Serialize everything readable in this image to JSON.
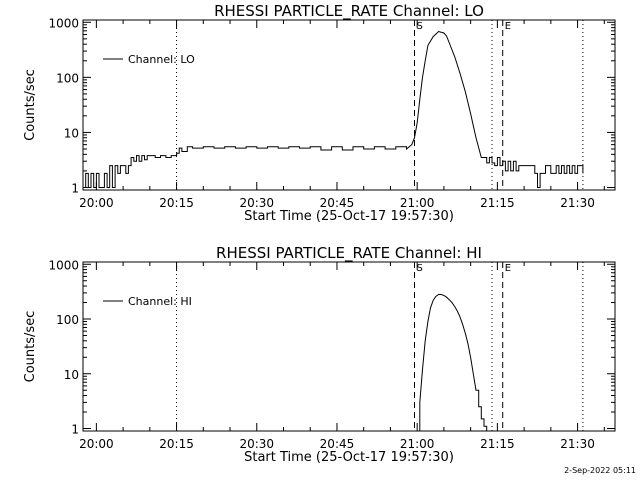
{
  "footer": {
    "timestamp": "2-Sep-2022 05:11"
  },
  "chart_data": [
    {
      "type": "line",
      "title": "RHESSI PARTICLE_RATE Channel: LO",
      "xlabel": "Start Time (25-Oct-17 19:57:30)",
      "ylabel": "Counts/sec",
      "yscale": "log",
      "ylim": [
        0.9,
        1100
      ],
      "xlim": [
        "19:57:30",
        "21:37:00"
      ],
      "x_tick_labels": [
        "20:00",
        "20:15",
        "20:30",
        "20:45",
        "21:00",
        "21:15",
        "21:30"
      ],
      "y_tick_labels": [
        "1",
        "10",
        "100",
        "1000"
      ],
      "legend": {
        "position": "upper-left",
        "entries": [
          "Channel: LO"
        ]
      },
      "vlines": [
        {
          "style": "dotted",
          "x": "20:15"
        },
        {
          "style": "dashed",
          "x": "20:59:30",
          "label": "S"
        },
        {
          "style": "dotted",
          "x": "21:14:00"
        },
        {
          "style": "dashed",
          "x": "21:16:00",
          "label": "E"
        },
        {
          "style": "dotted",
          "x": "21:31:00"
        }
      ],
      "series": [
        {
          "name": "Channel: LO",
          "x": [
            "19:57:30",
            "19:58:00",
            "19:58:30",
            "19:59:00",
            "19:59:30",
            "20:00:00",
            "20:00:30",
            "20:01:00",
            "20:01:30",
            "20:02:00",
            "20:02:30",
            "20:03:00",
            "20:03:30",
            "20:04:00",
            "20:04:30",
            "20:05:00",
            "20:05:30",
            "20:06:00",
            "20:06:30",
            "20:07:00",
            "20:07:30",
            "20:08:00",
            "20:08:30",
            "20:09:00",
            "20:09:30",
            "20:10:00",
            "20:11:00",
            "20:12:00",
            "20:13:00",
            "20:14:00",
            "20:15:00",
            "20:15:30",
            "20:16:00",
            "20:17:00",
            "20:18:00",
            "20:20:00",
            "20:22:00",
            "20:24:00",
            "20:26:00",
            "20:28:00",
            "20:30:00",
            "20:32:00",
            "20:34:00",
            "20:36:00",
            "20:38:00",
            "20:40:00",
            "20:42:00",
            "20:44:00",
            "20:46:00",
            "20:48:00",
            "20:50:00",
            "20:52:00",
            "20:54:00",
            "20:56:00",
            "20:58:00",
            "20:59:00",
            "20:59:30",
            "21:00:00",
            "21:00:30",
            "21:01:00",
            "21:01:30",
            "21:02:00",
            "21:03:00",
            "21:04:00",
            "21:05:00",
            "21:05:30",
            "21:06:00",
            "21:07:00",
            "21:08:00",
            "21:09:00",
            "21:10:00",
            "21:11:00",
            "21:12:00",
            "21:13:00",
            "21:13:30",
            "21:14:00",
            "21:14:30",
            "21:15:00",
            "21:15:30",
            "21:16:00",
            "21:16:30",
            "21:17:00",
            "21:17:30",
            "21:18:00",
            "21:18:30",
            "21:19:00",
            "21:20:00",
            "21:21:00",
            "21:22:00",
            "21:22:30",
            "21:23:00",
            "21:23:30",
            "21:24:00",
            "21:25:00",
            "21:26:00",
            "21:26:30",
            "21:27:00",
            "21:27:30",
            "21:28:00",
            "21:28:30",
            "21:29:00",
            "21:29:30",
            "21:30:00",
            "21:31:00"
          ],
          "y": [
            1.0,
            1.8,
            1.0,
            1.8,
            1.0,
            1.8,
            1.0,
            1.0,
            1.8,
            1.0,
            2.5,
            1.0,
            2.5,
            1.8,
            2.5,
            2.5,
            1.8,
            2.5,
            3.5,
            3.0,
            3.8,
            3.0,
            3.8,
            3.2,
            3.8,
            3.8,
            3.5,
            3.8,
            3.5,
            3.8,
            4.2,
            5.2,
            4.5,
            5.5,
            5.2,
            5.5,
            5.2,
            5.5,
            5.2,
            5.5,
            5.2,
            5.5,
            5.2,
            5.5,
            5.2,
            5.5,
            4.8,
            5.5,
            4.8,
            5.5,
            5.0,
            5.5,
            5.0,
            5.5,
            5.0,
            6.0,
            8.0,
            15,
            40,
            100,
            200,
            380,
            550,
            680,
            640,
            560,
            420,
            240,
            120,
            55,
            22,
            8,
            3.5,
            2.8,
            3.5,
            2.8,
            2.5,
            3.5,
            2.5,
            3.0,
            2.0,
            3.0,
            2.0,
            3.0,
            2.0,
            2.5,
            2.5,
            2.5,
            1.8,
            1.0,
            1.8,
            1.8,
            2.5,
            1.8,
            2.5,
            1.8,
            2.5,
            1.8,
            2.5,
            1.8,
            2.5,
            1.8,
            2.5,
            1.8
          ]
        }
      ]
    },
    {
      "type": "line",
      "title": "RHESSI PARTICLE_RATE Channel: HI",
      "xlabel": "Start Time (25-Oct-17 19:57:30)",
      "ylabel": "Counts/sec",
      "yscale": "log",
      "ylim": [
        0.9,
        1100
      ],
      "xlim": [
        "19:57:30",
        "21:37:00"
      ],
      "x_tick_labels": [
        "20:00",
        "20:15",
        "20:30",
        "20:45",
        "21:00",
        "21:15",
        "21:30"
      ],
      "y_tick_labels": [
        "1",
        "10",
        "100",
        "1000"
      ],
      "legend": {
        "position": "upper-left",
        "entries": [
          "Channel: HI"
        ]
      },
      "vlines": [
        {
          "style": "dotted",
          "x": "20:15"
        },
        {
          "style": "dashed",
          "x": "20:59:30",
          "label": "S"
        },
        {
          "style": "dotted",
          "x": "21:14:00"
        },
        {
          "style": "dashed",
          "x": "21:16:00",
          "label": "E"
        },
        {
          "style": "dotted",
          "x": "21:31:00"
        }
      ],
      "series": [
        {
          "name": "Channel: HI",
          "x": [
            "21:00:00",
            "21:00:30",
            "21:01:00",
            "21:01:30",
            "21:02:00",
            "21:02:30",
            "21:03:00",
            "21:03:30",
            "21:04:00",
            "21:04:30",
            "21:05:00",
            "21:05:30",
            "21:06:00",
            "21:06:30",
            "21:07:00",
            "21:07:30",
            "21:08:00",
            "21:08:30",
            "21:09:00",
            "21:09:30",
            "21:10:00",
            "21:10:30",
            "21:11:00",
            "21:11:30",
            "21:12:00",
            "21:12:30",
            "21:13:00"
          ],
          "y": [
            0.9,
            3,
            12,
            40,
            90,
            160,
            220,
            260,
            280,
            280,
            270,
            250,
            225,
            200,
            170,
            140,
            110,
            80,
            55,
            35,
            20,
            10,
            5,
            2.5,
            1.5,
            1.1,
            0.9
          ]
        }
      ]
    }
  ]
}
